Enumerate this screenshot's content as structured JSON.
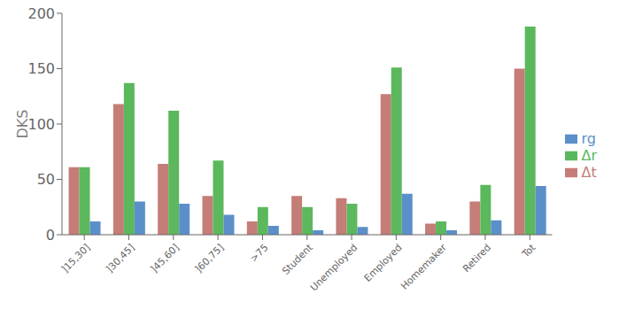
{
  "chart_data": {
    "type": "bar",
    "categories": [
      "]15,30]",
      "]30,45]",
      "]45,60]",
      "]60,75]",
      ">75",
      "Student",
      "Unemployed",
      "Employed",
      "Homemaker",
      "Retired",
      "Tot"
    ],
    "series": [
      {
        "name": "Δt",
        "color": "#c47d77",
        "values": [
          61,
          118,
          64,
          35,
          12,
          35,
          33,
          127,
          10,
          30,
          150
        ]
      },
      {
        "name": "Δr",
        "color": "#5cb85c",
        "values": [
          61,
          137,
          112,
          67,
          25,
          25,
          28,
          151,
          12,
          45,
          188
        ]
      },
      {
        "name": "rg",
        "color": "#5b8fc9",
        "values": [
          12,
          30,
          28,
          18,
          8,
          4,
          7,
          37,
          4,
          13,
          44
        ]
      }
    ],
    "y_label": "DKS",
    "ylim": [
      0,
      200
    ],
    "yticks": [
      0,
      50,
      100,
      150,
      200
    ],
    "grid": false,
    "legend": "right"
  }
}
